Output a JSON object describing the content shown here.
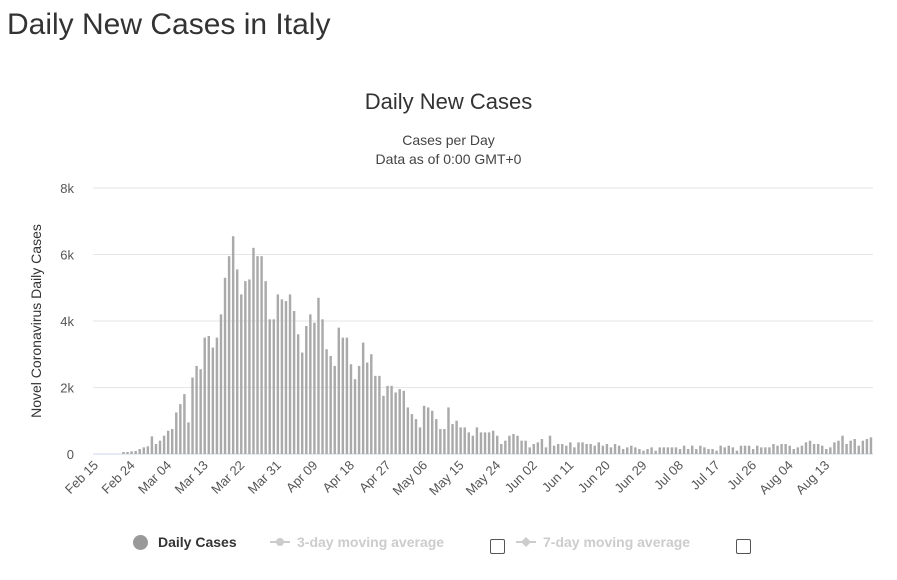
{
  "page": {
    "title": "Daily New Cases in Italy"
  },
  "chart_data": {
    "type": "bar",
    "title": "Daily New Cases",
    "subtitle_lines": [
      "Cases per Day",
      "Data as of 0:00 GMT+0"
    ],
    "ylabel": "Novel Coronavirus Daily Cases",
    "xlabel": "",
    "ylim": [
      0,
      8000
    ],
    "yticks": [
      0,
      2000,
      4000,
      6000,
      8000
    ],
    "ytick_labels": [
      "0",
      "2k",
      "4k",
      "6k",
      "8k"
    ],
    "grid": true,
    "x_start": "2020-02-15",
    "x_tick_labels": [
      "Feb 15",
      "Feb 24",
      "Mar 04",
      "Mar 13",
      "Mar 22",
      "Mar 31",
      "Apr 09",
      "Apr 18",
      "Apr 27",
      "May 06",
      "May 15",
      "May 24",
      "Jun 02",
      "Jun 11",
      "Jun 20",
      "Jun 29",
      "Jul 08",
      "Jul 17",
      "Jul 26",
      "Aug 04",
      "Aug 13"
    ],
    "bar_color": "#aaaaaa",
    "series": [
      {
        "name": "Daily Cases",
        "values": [
          0,
          0,
          0,
          0,
          0,
          0,
          0,
          60,
          60,
          80,
          90,
          150,
          200,
          230,
          530,
          300,
          400,
          550,
          700,
          750,
          1250,
          1500,
          1800,
          950,
          2300,
          2650,
          2550,
          3500,
          3550,
          3200,
          3500,
          4200,
          5300,
          5950,
          6550,
          5550,
          4800,
          5200,
          5250,
          6200,
          5950,
          5950,
          5200,
          4050,
          4050,
          4800,
          4650,
          4600,
          4800,
          4300,
          3600,
          3050,
          3850,
          4200,
          3950,
          4700,
          4050,
          3150,
          2950,
          2650,
          3800,
          3500,
          3500,
          2700,
          2250,
          2650,
          3350,
          2750,
          3000,
          2350,
          2350,
          1750,
          2050,
          2050,
          1850,
          1950,
          1900,
          1400,
          1200,
          1050,
          800,
          1450,
          1400,
          1300,
          1050,
          750,
          750,
          1400,
          900,
          1000,
          800,
          800,
          650,
          550,
          800,
          650,
          650,
          650,
          700,
          550,
          300,
          400,
          550,
          600,
          550,
          400,
          400,
          200,
          300,
          350,
          450,
          200,
          550,
          250,
          300,
          300,
          250,
          350,
          200,
          350,
          350,
          300,
          300,
          250,
          350,
          250,
          300,
          200,
          300,
          250,
          150,
          200,
          250,
          200,
          150,
          100,
          150,
          200,
          100,
          200,
          200,
          200,
          200,
          200,
          150,
          250,
          150,
          250,
          150,
          250,
          200,
          150,
          150,
          100,
          250,
          200,
          250,
          200,
          100,
          250,
          250,
          250,
          150,
          250,
          200,
          200,
          200,
          300,
          250,
          300,
          300,
          250,
          150,
          200,
          250,
          350,
          400,
          300,
          300,
          250,
          150,
          200,
          350,
          400,
          550,
          300,
          400,
          450,
          250,
          400,
          450,
          500
        ]
      }
    ],
    "legend": [
      {
        "name": "Daily Cases",
        "color": "#999999",
        "marker": "circle",
        "active": true
      },
      {
        "name": "3-day moving average",
        "color": "#cccccc",
        "marker": "line-circle",
        "active": false,
        "checkbox": true
      },
      {
        "name": "7-day moving average",
        "color": "#cccccc",
        "marker": "line-diamond",
        "active": false,
        "checkbox": true
      }
    ]
  }
}
